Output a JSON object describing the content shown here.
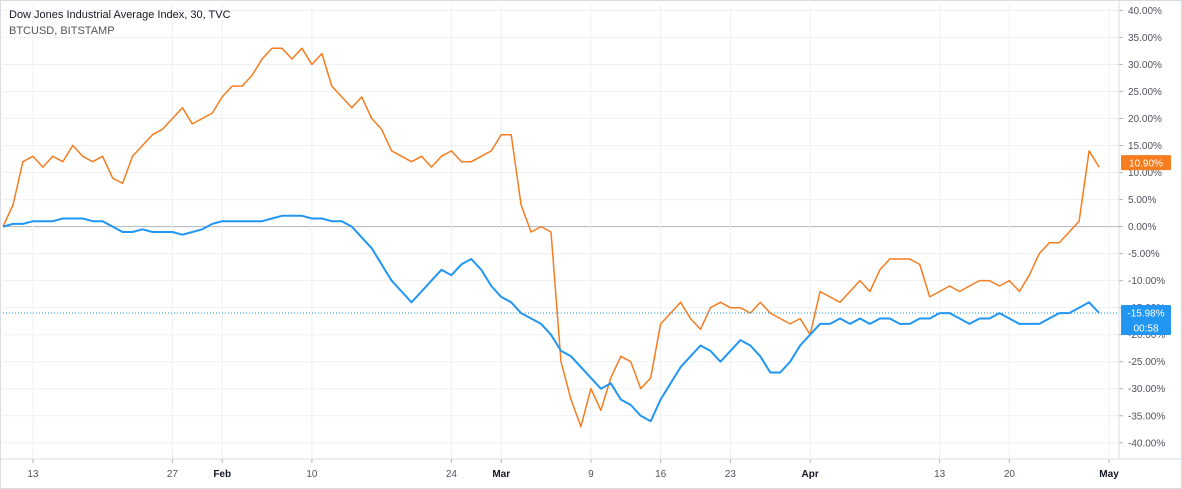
{
  "legend": {
    "series1": "Dow Jones Industrial Average Index, 30, TVC",
    "series2": "BTCUSD, BITSTAMP"
  },
  "badges": {
    "btc_value": "10.90%",
    "dji_value": "-15.98%",
    "countdown": "00:58"
  },
  "colors": {
    "btc": "#f57c1f",
    "dji": "#2196f3",
    "grid": "#eef0f3",
    "zero": "#b2b5be"
  },
  "chart_data": {
    "type": "line",
    "y_unit": "%",
    "ylim": [
      -43,
      41
    ],
    "y_ticks": [
      "40.00%",
      "35.00%",
      "30.00%",
      "25.00%",
      "20.00%",
      "15.00%",
      "10.00%",
      "5.00%",
      "0.00%",
      "-5.00%",
      "-10.00%",
      "-15.00%",
      "-20.00%",
      "-25.00%",
      "-30.00%",
      "-35.00%",
      "-40.00%"
    ],
    "x_ticks": [
      {
        "label": "13",
        "bold": false
      },
      {
        "label": "27",
        "bold": false
      },
      {
        "label": "Feb",
        "bold": true
      },
      {
        "label": "10",
        "bold": false
      },
      {
        "label": "24",
        "bold": false
      },
      {
        "label": "Mar",
        "bold": true
      },
      {
        "label": "9",
        "bold": false
      },
      {
        "label": "16",
        "bold": false
      },
      {
        "label": "23",
        "bold": false
      },
      {
        "label": "Apr",
        "bold": true
      },
      {
        "label": "13",
        "bold": false
      },
      {
        "label": "20",
        "bold": false
      },
      {
        "label": "May",
        "bold": true
      }
    ],
    "x_tick_days": [
      3,
      17,
      22,
      31,
      45,
      50,
      59,
      66,
      73,
      81,
      94,
      101,
      111
    ],
    "grid": true,
    "series": [
      {
        "name": "BTCUSD, BITSTAMP",
        "color": "#f57c1f",
        "x": [
          0,
          1,
          2,
          3,
          4,
          5,
          6,
          7,
          8,
          9,
          10,
          11,
          12,
          13,
          14,
          15,
          16,
          17,
          18,
          19,
          20,
          21,
          22,
          23,
          24,
          25,
          26,
          27,
          28,
          29,
          30,
          31,
          32,
          33,
          34,
          35,
          36,
          37,
          38,
          39,
          40,
          41,
          42,
          43,
          44,
          45,
          46,
          47,
          48,
          49,
          50,
          51,
          52,
          53,
          54,
          55,
          56,
          57,
          58,
          59,
          60,
          61,
          62,
          63,
          64,
          65,
          66,
          67,
          68,
          69,
          70,
          71,
          72,
          73,
          74,
          75,
          76,
          77,
          78,
          79,
          80,
          81,
          82,
          83,
          84,
          85,
          86,
          87,
          88,
          89,
          90,
          91,
          92,
          93,
          94,
          95,
          96,
          97,
          98,
          99,
          100,
          101,
          102,
          103,
          104,
          105,
          106,
          107,
          108,
          109,
          110
        ],
        "y": [
          0,
          4,
          12,
          13,
          11,
          13,
          12,
          15,
          13,
          12,
          13,
          9,
          8,
          13,
          15,
          17,
          18,
          20,
          22,
          19,
          20,
          21,
          24,
          26,
          26,
          28,
          31,
          33,
          33,
          31,
          33,
          30,
          32,
          26,
          24,
          22,
          24,
          20,
          18,
          14,
          13,
          12,
          13,
          11,
          13,
          14,
          12,
          12,
          13,
          14,
          17,
          17,
          4,
          -1,
          0,
          -1,
          -25,
          -32,
          -37,
          -30,
          -34,
          -28,
          -24,
          -25,
          -30,
          -28,
          -18,
          -16,
          -14,
          -17,
          -19,
          -15,
          -14,
          -15,
          -15,
          -16,
          -14,
          -16,
          -17,
          -18,
          -17,
          -20,
          -12,
          -13,
          -14,
          -12,
          -10,
          -12,
          -8,
          -6,
          -6,
          -6,
          -7,
          -13,
          -12,
          -11,
          -12,
          -11,
          -10,
          -10,
          -11,
          -10,
          -12,
          -9,
          -5,
          -3,
          -3,
          -1,
          1,
          14,
          11
        ],
        "end_label": "10.90%"
      },
      {
        "name": "Dow Jones Industrial Average Index, 30, TVC",
        "color": "#2196f3",
        "x": [
          0,
          1,
          2,
          3,
          4,
          5,
          6,
          7,
          8,
          9,
          10,
          11,
          12,
          13,
          14,
          15,
          16,
          17,
          18,
          19,
          20,
          21,
          22,
          23,
          24,
          25,
          26,
          27,
          28,
          29,
          30,
          31,
          32,
          33,
          34,
          35,
          36,
          37,
          38,
          39,
          40,
          41,
          42,
          43,
          44,
          45,
          46,
          47,
          48,
          49,
          50,
          51,
          52,
          53,
          54,
          55,
          56,
          57,
          58,
          59,
          60,
          61,
          62,
          63,
          64,
          65,
          66,
          67,
          68,
          69,
          70,
          71,
          72,
          73,
          74,
          75,
          76,
          77,
          78,
          79,
          80,
          81,
          82,
          83,
          84,
          85,
          86,
          87,
          88,
          89,
          90,
          91,
          92,
          93,
          94,
          95,
          96,
          97,
          98,
          99,
          100,
          101,
          102,
          103,
          104,
          105,
          106,
          107,
          108,
          109,
          110
        ],
        "y": [
          0,
          0.5,
          0.5,
          1,
          1,
          1,
          1.5,
          1.5,
          1.5,
          1,
          1,
          0,
          -1,
          -1,
          -0.5,
          -1,
          -1,
          -1,
          -1.5,
          -1,
          -0.5,
          0.5,
          1,
          1,
          1,
          1,
          1,
          1.5,
          2,
          2,
          2,
          1.5,
          1.5,
          1,
          1,
          0,
          -2,
          -4,
          -7,
          -10,
          -12,
          -14,
          -12,
          -10,
          -8,
          -9,
          -7,
          -6,
          -8,
          -11,
          -13,
          -14,
          -16,
          -17,
          -18,
          -20,
          -23,
          -24,
          -26,
          -28,
          -30,
          -29,
          -32,
          -33,
          -35,
          -36,
          -32,
          -29,
          -26,
          -24,
          -22,
          -23,
          -25,
          -23,
          -21,
          -22,
          -24,
          -27,
          -27,
          -25,
          -22,
          -20,
          -18,
          -18,
          -17,
          -18,
          -17,
          -18,
          -17,
          -17,
          -18,
          -18,
          -17,
          -17,
          -16,
          -16,
          -17,
          -18,
          -17,
          -17,
          -16,
          -17,
          -18,
          -18,
          -18,
          -17,
          -16,
          -16,
          -15,
          -14,
          -15.98
        ],
        "end_label": "-15.98%"
      }
    ]
  }
}
